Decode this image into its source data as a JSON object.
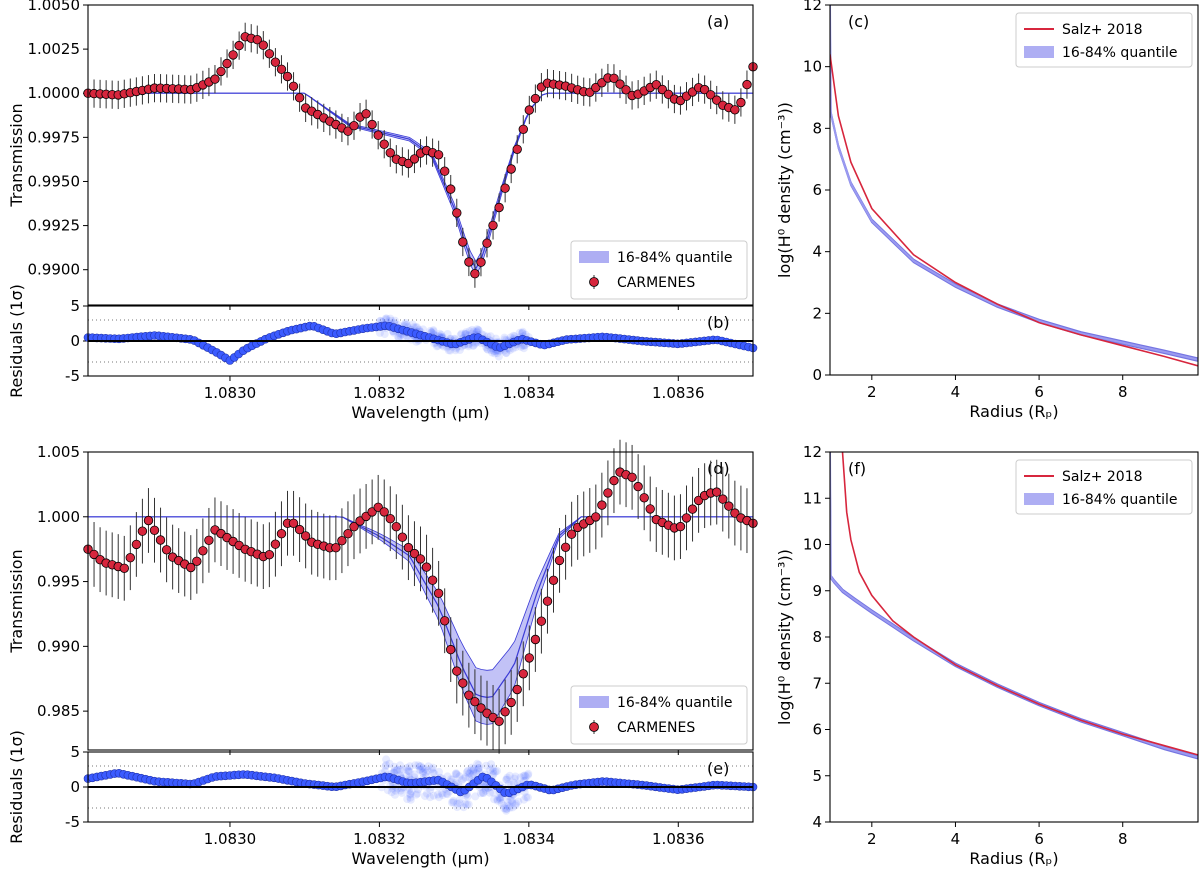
{
  "colors": {
    "data": "#d7263d",
    "model": "#3b3bd6",
    "band": "#9a9af0",
    "resid": "#3b5bff",
    "salz": "#d7263d",
    "axis": "#000000"
  },
  "chart_data": [
    {
      "id": "a",
      "type": "scatter",
      "panel_label": "(a)",
      "ylabel": "Transmission",
      "xlabel": "",
      "xlim": [
        1.08281,
        1.0837
      ],
      "ylim": [
        0.988,
        1.005
      ],
      "xticks": [
        "1.0830",
        "1.0832",
        "1.0834",
        "1.0836"
      ],
      "xtick_values": [
        1.083,
        1.0832,
        1.0834,
        1.0836
      ],
      "yticks": [
        "0.9900",
        "0.9925",
        "0.9950",
        "0.9975",
        "1.0000",
        "1.0025",
        "1.0050"
      ],
      "ytick_values": [
        0.99,
        0.9925,
        0.995,
        0.9975,
        1.0,
        1.0025,
        1.005
      ],
      "legend": [
        "16-84% quantile",
        "CARMENES"
      ],
      "legend_loc": "lower-right",
      "points": [
        [
          1.08281,
          1.0
        ],
        [
          1.08285,
          0.9999
        ],
        [
          1.0829,
          1.0003
        ],
        [
          1.08295,
          1.0002
        ],
        [
          1.08298,
          1.0008
        ],
        [
          1.083,
          1.0019
        ],
        [
          1.08302,
          1.0032
        ],
        [
          1.08304,
          1.003
        ],
        [
          1.08306,
          1.0018
        ],
        [
          1.08308,
          1.0008
        ],
        [
          1.0831,
          0.9992
        ],
        [
          1.08313,
          0.9985
        ],
        [
          1.08316,
          0.9978
        ],
        [
          1.08318,
          0.999
        ],
        [
          1.0832,
          0.9975
        ],
        [
          1.08322,
          0.9963
        ],
        [
          1.08324,
          0.996
        ],
        [
          1.08326,
          0.9968
        ],
        [
          1.08328,
          0.9965
        ],
        [
          1.0833,
          0.994
        ],
        [
          1.08331,
          0.9918
        ],
        [
          1.08332,
          0.9904
        ],
        [
          1.08333,
          0.9896
        ],
        [
          1.08334,
          0.991
        ],
        [
          1.08336,
          0.9935
        ],
        [
          1.08338,
          0.9962
        ],
        [
          1.0834,
          0.999
        ],
        [
          1.08342,
          1.0006
        ],
        [
          1.08345,
          1.0004
        ],
        [
          1.08348,
          1.0
        ],
        [
          1.08351,
          1.001
        ],
        [
          1.08354,
          0.9998
        ],
        [
          1.08357,
          1.0005
        ],
        [
          1.0836,
          0.9995
        ],
        [
          1.08363,
          1.0004
        ],
        [
          1.08366,
          0.9993
        ],
        [
          1.08368,
          0.999
        ],
        [
          1.0837,
          1.0015
        ]
      ],
      "yerr": 0.0008,
      "model_line": [
        [
          1.08281,
          1.0
        ],
        [
          1.0831,
          1.0
        ],
        [
          1.08316,
          0.9982
        ],
        [
          1.0832,
          0.9978
        ],
        [
          1.08324,
          0.9974
        ],
        [
          1.08327,
          0.9965
        ],
        [
          1.0833,
          0.9935
        ],
        [
          1.08332,
          0.9908
        ],
        [
          1.08333,
          0.99
        ],
        [
          1.08334,
          0.991
        ],
        [
          1.08336,
          0.994
        ],
        [
          1.08338,
          0.9968
        ],
        [
          1.0834,
          0.999
        ],
        [
          1.08342,
          1.0
        ],
        [
          1.0837,
          1.0
        ]
      ]
    },
    {
      "id": "b",
      "type": "scatter",
      "panel_label": "(b)",
      "ylabel": "Residuals (1σ)",
      "xlabel": "Wavelength (µm)",
      "xlim": [
        1.08281,
        1.0837
      ],
      "ylim": [
        -5,
        5
      ],
      "xticks": [
        "1.0830",
        "1.0832",
        "1.0834",
        "1.0836"
      ],
      "xtick_values": [
        1.083,
        1.0832,
        1.0834,
        1.0836
      ],
      "yticks": [
        "-5",
        "0",
        "5"
      ],
      "ytick_values": [
        -5,
        0,
        5
      ],
      "hlines": [
        3,
        -3
      ],
      "points": [
        [
          1.08281,
          0.5
        ],
        [
          1.08285,
          0.3
        ],
        [
          1.0829,
          0.8
        ],
        [
          1.08295,
          0.2
        ],
        [
          1.08298,
          -1.5
        ],
        [
          1.083,
          -2.8
        ],
        [
          1.08302,
          -1.2
        ],
        [
          1.08305,
          0.4
        ],
        [
          1.08308,
          1.5
        ],
        [
          1.08311,
          2.2
        ],
        [
          1.08314,
          1.0
        ],
        [
          1.08318,
          1.8
        ],
        [
          1.08321,
          2.2
        ],
        [
          1.08324,
          1.3
        ],
        [
          1.08327,
          0.4
        ],
        [
          1.0833,
          -0.5
        ],
        [
          1.08333,
          0.6
        ],
        [
          1.08336,
          -1.0
        ],
        [
          1.08339,
          0.3
        ],
        [
          1.08342,
          -0.6
        ],
        [
          1.08345,
          0.2
        ],
        [
          1.0835,
          0.6
        ],
        [
          1.08355,
          0.0
        ],
        [
          1.0836,
          -0.4
        ],
        [
          1.08365,
          0.2
        ],
        [
          1.0837,
          -1.0
        ]
      ]
    },
    {
      "id": "c",
      "type": "line",
      "panel_label": "(c)",
      "ylabel": "log(H⁰ density (cm⁻³))",
      "xlabel": "Radius (Rₚ)",
      "xlim": [
        1,
        9.8
      ],
      "ylim": [
        0,
        12
      ],
      "xticks": [
        "2",
        "4",
        "6",
        "8"
      ],
      "xtick_values": [
        2,
        4,
        6,
        8
      ],
      "yticks": [
        "0",
        "2",
        "4",
        "6",
        "8",
        "10",
        "12"
      ],
      "ytick_values": [
        0,
        2,
        4,
        6,
        8,
        10,
        12
      ],
      "legend": [
        "Salz+ 2018",
        "16-84% quantile"
      ],
      "legend_loc": "upper-right",
      "series": [
        {
          "name": "Salz+ 2018",
          "x": [
            1.0,
            1.2,
            1.5,
            2.0,
            3.0,
            4.0,
            5.0,
            6.0,
            7.0,
            8.0,
            9.0,
            9.8
          ],
          "y": [
            10.4,
            8.4,
            6.9,
            5.4,
            3.9,
            3.0,
            2.3,
            1.7,
            1.3,
            0.95,
            0.6,
            0.3
          ]
        },
        {
          "name": "16-84% quantile",
          "x": [
            1.0,
            1.02,
            1.2,
            1.5,
            2.0,
            3.0,
            4.0,
            5.0,
            6.0,
            7.0,
            8.0,
            9.0,
            9.8
          ],
          "y": [
            12.0,
            8.5,
            7.4,
            6.2,
            5.0,
            3.7,
            2.9,
            2.25,
            1.75,
            1.35,
            1.05,
            0.75,
            0.5
          ]
        }
      ]
    },
    {
      "id": "d",
      "type": "scatter",
      "panel_label": "(d)",
      "ylabel": "Transmission",
      "xlabel": "",
      "xlim": [
        1.08281,
        1.0837
      ],
      "ylim": [
        0.982,
        1.005
      ],
      "xticks": [
        "1.0830",
        "1.0832",
        "1.0834",
        "1.0836"
      ],
      "xtick_values": [
        1.083,
        1.0832,
        1.0834,
        1.0836
      ],
      "yticks": [
        "0.985",
        "0.990",
        "0.995",
        "1.000",
        "1.005"
      ],
      "ytick_values": [
        0.985,
        0.99,
        0.995,
        1.0,
        1.005
      ],
      "legend": [
        "16-84% quantile",
        "CARMENES"
      ],
      "legend_loc": "lower-right",
      "points": [
        [
          1.08281,
          0.9975
        ],
        [
          1.08283,
          0.9965
        ],
        [
          1.08286,
          0.996
        ],
        [
          1.08289,
          0.9998
        ],
        [
          1.08292,
          0.997
        ],
        [
          1.08295,
          0.996
        ],
        [
          1.08298,
          0.999
        ],
        [
          1.08302,
          0.9975
        ],
        [
          1.08305,
          0.9968
        ],
        [
          1.08308,
          0.9998
        ],
        [
          1.08311,
          0.998
        ],
        [
          1.08314,
          0.9975
        ],
        [
          1.08317,
          0.9995
        ],
        [
          1.0832,
          1.0008
        ],
        [
          1.08322,
          0.9995
        ],
        [
          1.08324,
          0.9975
        ],
        [
          1.08326,
          0.9965
        ],
        [
          1.08328,
          0.994
        ],
        [
          1.0833,
          0.9885
        ],
        [
          1.08332,
          0.9862
        ],
        [
          1.08334,
          0.985
        ],
        [
          1.08336,
          0.9842
        ],
        [
          1.08338,
          0.986
        ],
        [
          1.0834,
          0.989
        ],
        [
          1.08342,
          0.9925
        ],
        [
          1.08344,
          0.9965
        ],
        [
          1.08346,
          0.999
        ],
        [
          1.08349,
          1.0
        ],
        [
          1.08352,
          1.0035
        ],
        [
          1.08354,
          1.003
        ],
        [
          1.08357,
          0.9998
        ],
        [
          1.0836,
          0.999
        ],
        [
          1.08363,
          1.0015
        ],
        [
          1.08365,
          1.002
        ],
        [
          1.08368,
          1.0
        ],
        [
          1.0837,
          0.9995
        ]
      ],
      "yerr": 0.0025,
      "model_line": [
        [
          1.08281,
          1.0
        ],
        [
          1.08315,
          1.0
        ],
        [
          1.0832,
          0.9985
        ],
        [
          1.08324,
          0.997
        ],
        [
          1.08328,
          0.993
        ],
        [
          1.08331,
          0.9885
        ],
        [
          1.08333,
          0.9862
        ],
        [
          1.08335,
          0.986
        ],
        [
          1.08338,
          0.9885
        ],
        [
          1.08341,
          0.994
        ],
        [
          1.08344,
          0.9985
        ],
        [
          1.08347,
          1.0
        ],
        [
          1.0837,
          1.0
        ]
      ]
    },
    {
      "id": "e",
      "type": "scatter",
      "panel_label": "(e)",
      "ylabel": "Residuals (1σ)",
      "xlabel": "Wavelength (µm)",
      "xlim": [
        1.08281,
        1.0837
      ],
      "ylim": [
        -5,
        5
      ],
      "xticks": [
        "1.0830",
        "1.0832",
        "1.0834",
        "1.0836"
      ],
      "xtick_values": [
        1.083,
        1.0832,
        1.0834,
        1.0836
      ],
      "yticks": [
        "-5",
        "0",
        "5"
      ],
      "ytick_values": [
        -5,
        0,
        5
      ],
      "hlines": [
        3,
        -3
      ],
      "points": [
        [
          1.08281,
          1.2
        ],
        [
          1.08285,
          2.0
        ],
        [
          1.0829,
          0.8
        ],
        [
          1.08295,
          0.4
        ],
        [
          1.08298,
          1.5
        ],
        [
          1.08302,
          1.8
        ],
        [
          1.08306,
          1.3
        ],
        [
          1.0831,
          0.5
        ],
        [
          1.08314,
          0.0
        ],
        [
          1.08318,
          0.8
        ],
        [
          1.08321,
          1.5
        ],
        [
          1.08324,
          0.5
        ],
        [
          1.08328,
          1.0
        ],
        [
          1.08331,
          -0.8
        ],
        [
          1.08334,
          1.6
        ],
        [
          1.08337,
          -1.0
        ],
        [
          1.0834,
          0.4
        ],
        [
          1.08343,
          -0.5
        ],
        [
          1.08346,
          0.3
        ],
        [
          1.0835,
          0.8
        ],
        [
          1.08355,
          0.3
        ],
        [
          1.0836,
          -0.4
        ],
        [
          1.08365,
          0.3
        ],
        [
          1.0837,
          0.0
        ]
      ]
    },
    {
      "id": "f",
      "type": "line",
      "panel_label": "(f)",
      "ylabel": "log(H⁰ density (cm⁻³))",
      "xlabel": "Radius (Rₚ)",
      "xlim": [
        1,
        9.8
      ],
      "ylim": [
        4,
        12
      ],
      "xticks": [
        "2",
        "4",
        "6",
        "8"
      ],
      "xtick_values": [
        2,
        4,
        6,
        8
      ],
      "yticks": [
        "4",
        "5",
        "6",
        "7",
        "8",
        "9",
        "10",
        "11",
        "12"
      ],
      "ytick_values": [
        4,
        5,
        6,
        7,
        8,
        9,
        10,
        11,
        12
      ],
      "legend": [
        "Salz+ 2018",
        "16-84% quantile"
      ],
      "legend_loc": "upper-right",
      "series": [
        {
          "name": "Salz+ 2018",
          "x": [
            1.3,
            1.4,
            1.5,
            1.7,
            2.0,
            2.5,
            3.0,
            4.0,
            5.0,
            6.0,
            7.0,
            8.0,
            9.0,
            9.8
          ],
          "y": [
            12.0,
            10.7,
            10.1,
            9.4,
            8.9,
            8.35,
            8.0,
            7.4,
            6.95,
            6.55,
            6.2,
            5.9,
            5.65,
            5.45
          ]
        },
        {
          "name": "16-84% quantile",
          "x": [
            1.0,
            1.02,
            1.1,
            1.3,
            1.6,
            2.0,
            2.5,
            3.0,
            4.0,
            5.0,
            6.0,
            7.0,
            8.0,
            9.0,
            9.8
          ],
          "y": [
            12.0,
            9.3,
            9.2,
            9.0,
            8.8,
            8.55,
            8.25,
            7.95,
            7.4,
            6.95,
            6.55,
            6.2,
            5.9,
            5.6,
            5.4
          ]
        }
      ]
    }
  ]
}
